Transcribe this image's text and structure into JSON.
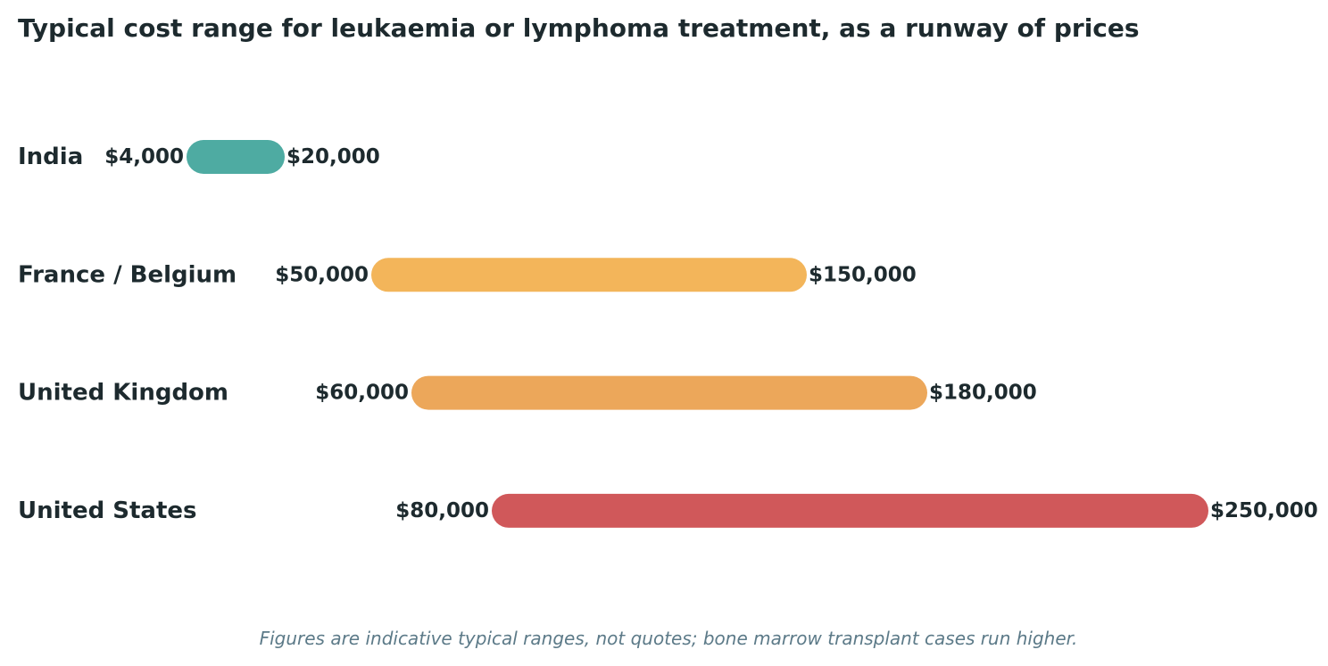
{
  "title": "Typical cost range for leukaemia or lymphoma treatment, as a runway of prices",
  "footnote": "Figures are indicative typical ranges, not quotes; bone marrow transplant cases run higher.",
  "chart_data": {
    "type": "range-bar",
    "title": "Typical cost range for leukaemia or lymphoma treatment, as a runway of prices",
    "currency": "USD",
    "grid": false,
    "legend": "none",
    "xlim": [
      0,
      260000
    ],
    "categories": [
      "India",
      "France / Belgium",
      "United Kingdom",
      "United States"
    ],
    "series": [
      {
        "category": "India",
        "low": 4000,
        "high": 20000,
        "low_label": "$4,000",
        "high_label": "$20,000",
        "color": "#4eaba2"
      },
      {
        "category": "France / Belgium",
        "low": 50000,
        "high": 150000,
        "low_label": "$50,000",
        "high_label": "$150,000",
        "color": "#f3b55a"
      },
      {
        "category": "United Kingdom",
        "low": 60000,
        "high": 180000,
        "low_label": "$60,000",
        "high_label": "$180,000",
        "color": "#eca75a"
      },
      {
        "category": "United States",
        "low": 80000,
        "high": 250000,
        "low_label": "$80,000",
        "high_label": "$250,000",
        "color": "#d0585a"
      }
    ]
  }
}
